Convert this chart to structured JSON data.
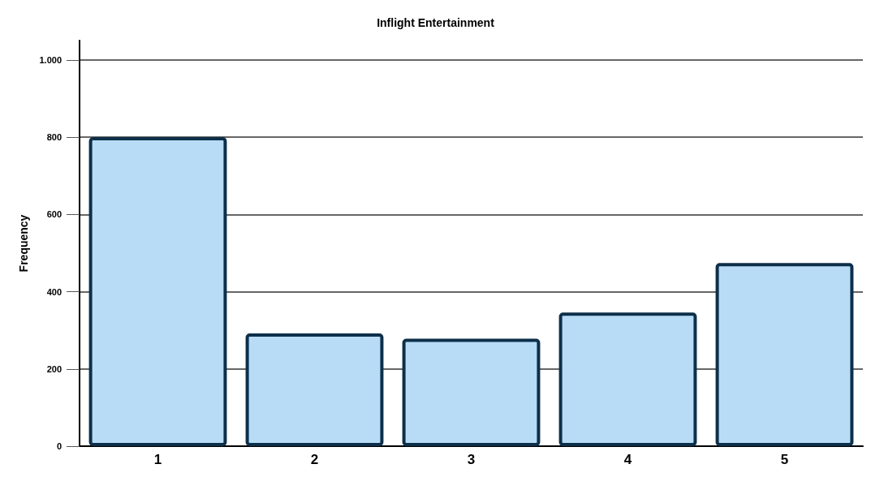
{
  "chart_data": {
    "type": "bar",
    "title": "Inflight Entertainment",
    "ylabel": "Frequency",
    "categories": [
      "1",
      "2",
      "3",
      "4",
      "5"
    ],
    "series": [
      {
        "color": "#b8dcf5",
        "values": [
          800,
          292,
          278,
          346,
          474
        ]
      }
    ],
    "ylim": [
      0,
      1050
    ],
    "yticks": [
      0,
      200,
      400,
      600,
      800,
      {
        "value": 1000,
        "label": "1.000"
      }
    ],
    "grid": "y"
  }
}
